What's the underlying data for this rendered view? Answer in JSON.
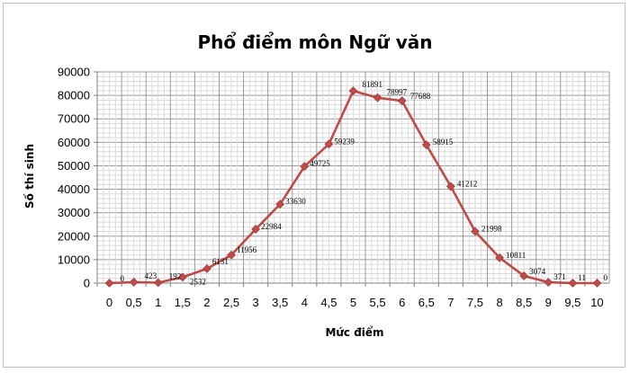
{
  "chart_data": {
    "type": "line",
    "title": "Phổ điểm môn Ngữ văn",
    "xlabel": "Mức điểm",
    "ylabel": "Số thí sinh",
    "x": [
      "0",
      "0,5",
      "1",
      "1,5",
      "2",
      "2,5",
      "3",
      "3,5",
      "4",
      "4,5",
      "5",
      "5,5",
      "6",
      "6,5",
      "7",
      "7,5",
      "8",
      "8,5",
      "9",
      "9,5",
      "10"
    ],
    "series": [
      {
        "values": [
          0,
          423,
          192,
          2532,
          6131,
          11956,
          22984,
          33630,
          49725,
          59239,
          81891,
          78997,
          77688,
          58915,
          41212,
          21998,
          10811,
          3074,
          371,
          11,
          0
        ],
        "data_labels": [
          "0",
          "423",
          "192",
          "2532",
          "6131",
          "11956",
          "22984",
          "33630",
          "49725",
          "59239",
          "81891",
          "78997",
          "77688",
          "58915",
          "41212",
          "21998",
          "10811",
          "3074",
          "371",
          "11",
          "0"
        ],
        "color": "#be4b48"
      }
    ],
    "yticks": [
      "0",
      "10000",
      "20000",
      "30000",
      "40000",
      "50000",
      "60000",
      "70000",
      "80000",
      "90000"
    ],
    "ylim": [
      0,
      90000
    ],
    "grid": true,
    "legend": "none"
  }
}
